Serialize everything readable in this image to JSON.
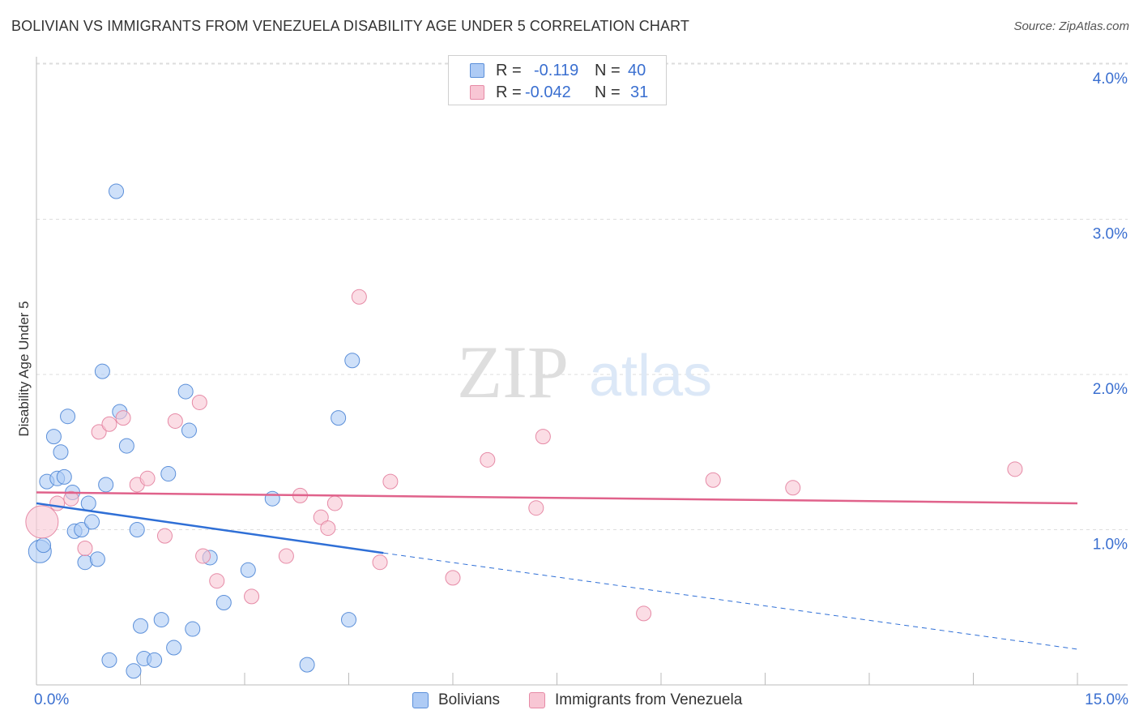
{
  "title": "BOLIVIAN VS IMMIGRANTS FROM VENEZUELA DISABILITY AGE UNDER 5 CORRELATION CHART",
  "source": "Source: ZipAtlas.com",
  "watermark": {
    "zip": "ZIP",
    "atlas": "atlas"
  },
  "legend_top": {
    "rows": [
      {
        "r_label": "R =",
        "r_value": "-0.119",
        "n_label": "N =",
        "n_value": "40",
        "color": "#aecbf5",
        "border": "#5b8fd9"
      },
      {
        "r_label": "R =",
        "r_value": "-0.042",
        "n_label": "N =",
        "n_value": "31",
        "color": "#f8c6d4",
        "border": "#e68aa6"
      }
    ]
  },
  "legend_bottom": [
    {
      "label": "Bolivians",
      "color": "#aecbf5",
      "border": "#5b8fd9"
    },
    {
      "label": "Immigrants from Venezuela",
      "color": "#f8c6d4",
      "border": "#e68aa6"
    }
  ],
  "chart_data": {
    "type": "scatter",
    "title": "BOLIVIAN VS IMMIGRANTS FROM VENEZUELA DISABILITY AGE UNDER 5 CORRELATION CHART",
    "xlabel": "",
    "ylabel": "Disability Age Under 5",
    "xlim": [
      0,
      15
    ],
    "ylim": [
      0,
      4.1
    ],
    "x_tick_labels": [
      "0.0%",
      "15.0%"
    ],
    "y_ticks": [
      1.0,
      2.0,
      3.0,
      4.0
    ],
    "y_tick_labels": [
      "1.0%",
      "2.0%",
      "3.0%",
      "4.0%"
    ],
    "grid": "horizontal dashed",
    "legend": "top-center",
    "series": [
      {
        "name": "Bolivians",
        "color": "#aecbf5",
        "border": "#5b8fd9",
        "line_color": "#2f6fd6",
        "trend": {
          "x0": 0.0,
          "y0": 1.17,
          "x1": 5.0,
          "y1": 0.85,
          "dash_to_x": 15.0,
          "dash_to_y": 0.23
        },
        "points": [
          {
            "x": 0.05,
            "y": 0.86,
            "s": 14
          },
          {
            "x": 0.1,
            "y": 0.9,
            "s": 9
          },
          {
            "x": 0.15,
            "y": 1.31,
            "s": 9
          },
          {
            "x": 0.25,
            "y": 1.6,
            "s": 9
          },
          {
            "x": 0.3,
            "y": 1.33,
            "s": 9
          },
          {
            "x": 0.35,
            "y": 1.5,
            "s": 9
          },
          {
            "x": 0.4,
            "y": 1.34,
            "s": 9
          },
          {
            "x": 0.45,
            "y": 1.73,
            "s": 9
          },
          {
            "x": 0.52,
            "y": 1.24,
            "s": 9
          },
          {
            "x": 0.55,
            "y": 0.99,
            "s": 9
          },
          {
            "x": 0.65,
            "y": 1.0,
            "s": 9
          },
          {
            "x": 0.7,
            "y": 0.79,
            "s": 9
          },
          {
            "x": 0.75,
            "y": 1.17,
            "s": 9
          },
          {
            "x": 0.8,
            "y": 1.05,
            "s": 9
          },
          {
            "x": 0.88,
            "y": 0.81,
            "s": 9
          },
          {
            "x": 0.95,
            "y": 2.02,
            "s": 9
          },
          {
            "x": 1.0,
            "y": 1.29,
            "s": 9
          },
          {
            "x": 1.05,
            "y": 0.16,
            "s": 9
          },
          {
            "x": 1.15,
            "y": 3.18,
            "s": 9
          },
          {
            "x": 1.2,
            "y": 1.76,
            "s": 9
          },
          {
            "x": 1.3,
            "y": 1.54,
            "s": 9
          },
          {
            "x": 1.4,
            "y": 0.09,
            "s": 9
          },
          {
            "x": 1.45,
            "y": 1.0,
            "s": 9
          },
          {
            "x": 1.5,
            "y": 0.38,
            "s": 9
          },
          {
            "x": 1.55,
            "y": 0.17,
            "s": 9
          },
          {
            "x": 1.7,
            "y": 0.16,
            "s": 9
          },
          {
            "x": 1.8,
            "y": 0.42,
            "s": 9
          },
          {
            "x": 1.9,
            "y": 1.36,
            "s": 9
          },
          {
            "x": 1.98,
            "y": 0.24,
            "s": 9
          },
          {
            "x": 2.15,
            "y": 1.89,
            "s": 9
          },
          {
            "x": 2.2,
            "y": 1.64,
            "s": 9
          },
          {
            "x": 2.25,
            "y": 0.36,
            "s": 9
          },
          {
            "x": 2.5,
            "y": 0.82,
            "s": 9
          },
          {
            "x": 2.7,
            "y": 0.53,
            "s": 9
          },
          {
            "x": 3.05,
            "y": 0.74,
            "s": 9
          },
          {
            "x": 3.4,
            "y": 1.2,
            "s": 9
          },
          {
            "x": 3.9,
            "y": 0.13,
            "s": 9
          },
          {
            "x": 4.35,
            "y": 1.72,
            "s": 9
          },
          {
            "x": 4.5,
            "y": 0.42,
            "s": 9
          },
          {
            "x": 4.55,
            "y": 2.09,
            "s": 9
          }
        ]
      },
      {
        "name": "Immigrants from Venezuela",
        "color": "#f8c6d4",
        "border": "#e68aa6",
        "line_color": "#e0628b",
        "trend": {
          "x0": 0.0,
          "y0": 1.24,
          "x1": 15.0,
          "y1": 1.17
        },
        "points": [
          {
            "x": 0.08,
            "y": 1.05,
            "s": 20
          },
          {
            "x": 0.3,
            "y": 1.17,
            "s": 9
          },
          {
            "x": 0.5,
            "y": 1.2,
            "s": 9
          },
          {
            "x": 0.7,
            "y": 0.88,
            "s": 9
          },
          {
            "x": 0.9,
            "y": 1.63,
            "s": 9
          },
          {
            "x": 1.05,
            "y": 1.68,
            "s": 9
          },
          {
            "x": 1.25,
            "y": 1.72,
            "s": 9
          },
          {
            "x": 1.45,
            "y": 1.29,
            "s": 9
          },
          {
            "x": 1.6,
            "y": 1.33,
            "s": 9
          },
          {
            "x": 1.85,
            "y": 0.96,
            "s": 9
          },
          {
            "x": 2.0,
            "y": 1.7,
            "s": 9
          },
          {
            "x": 2.35,
            "y": 1.82,
            "s": 9
          },
          {
            "x": 2.4,
            "y": 0.83,
            "s": 9
          },
          {
            "x": 2.6,
            "y": 0.67,
            "s": 9
          },
          {
            "x": 3.1,
            "y": 0.57,
            "s": 9
          },
          {
            "x": 3.6,
            "y": 0.83,
            "s": 9
          },
          {
            "x": 3.8,
            "y": 1.22,
            "s": 9
          },
          {
            "x": 4.1,
            "y": 1.08,
            "s": 9
          },
          {
            "x": 4.2,
            "y": 1.01,
            "s": 9
          },
          {
            "x": 4.3,
            "y": 1.17,
            "s": 9
          },
          {
            "x": 4.65,
            "y": 2.5,
            "s": 9
          },
          {
            "x": 4.95,
            "y": 0.79,
            "s": 9
          },
          {
            "x": 5.1,
            "y": 1.31,
            "s": 9
          },
          {
            "x": 6.0,
            "y": 0.69,
            "s": 9
          },
          {
            "x": 6.5,
            "y": 1.45,
            "s": 9
          },
          {
            "x": 7.2,
            "y": 1.14,
            "s": 9
          },
          {
            "x": 7.3,
            "y": 1.6,
            "s": 9
          },
          {
            "x": 8.75,
            "y": 0.46,
            "s": 9
          },
          {
            "x": 9.75,
            "y": 1.32,
            "s": 9
          },
          {
            "x": 10.9,
            "y": 1.27,
            "s": 9
          },
          {
            "x": 14.1,
            "y": 1.39,
            "s": 9
          }
        ]
      }
    ]
  }
}
